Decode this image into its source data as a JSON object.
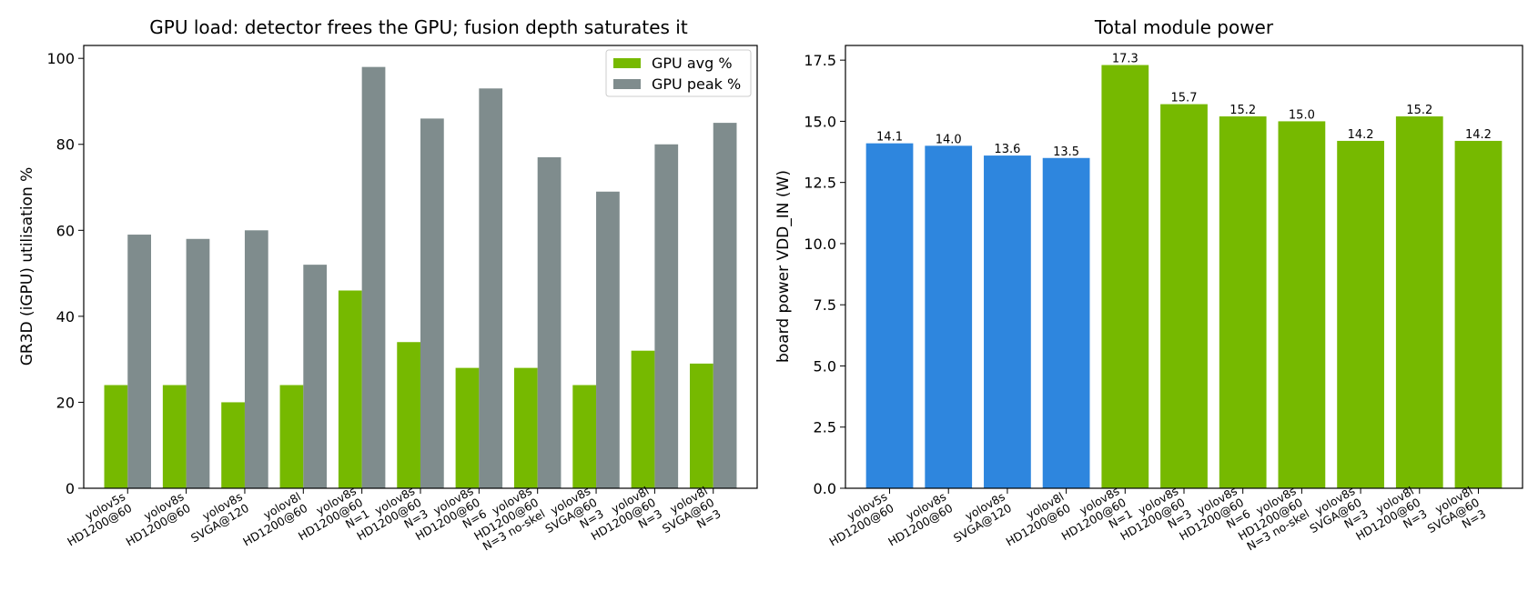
{
  "chart_data": [
    {
      "type": "bar",
      "title": "GPU load: detector frees the GPU; fusion depth saturates it",
      "xlabel": "",
      "ylabel": "GR3D (iGPU) utilisation %",
      "ylim": [
        0,
        103
      ],
      "yticks": [
        0,
        20,
        40,
        60,
        80,
        100
      ],
      "grid": false,
      "legend": "top-right",
      "categories": [
        [
          "yolov5s",
          "HD1200@60"
        ],
        [
          "yolov8s",
          "HD1200@60"
        ],
        [
          "yolov8s",
          "SVGA@120"
        ],
        [
          "yolov8l",
          "HD1200@60"
        ],
        [
          "yolov8s",
          "HD1200@60",
          "N=1"
        ],
        [
          "yolov8s",
          "HD1200@60",
          "N=3"
        ],
        [
          "yolov8s",
          "HD1200@60",
          "N=6"
        ],
        [
          "yolov8s",
          "HD1200@60",
          "N=3 no-skel"
        ],
        [
          "yolov8s",
          "SVGA@60",
          "N=3"
        ],
        [
          "yolov8l",
          "HD1200@60",
          "N=3"
        ],
        [
          "yolov8l",
          "SVGA@60",
          "N=3"
        ]
      ],
      "series": [
        {
          "name": "GPU avg %",
          "color": "#76b900",
          "values": [
            24,
            24,
            20,
            24,
            46,
            34,
            28,
            28,
            24,
            32,
            29
          ]
        },
        {
          "name": "GPU peak %",
          "color": "#7f8c8d",
          "values": [
            59,
            58,
            60,
            52,
            98,
            86,
            93,
            77,
            69,
            80,
            85
          ]
        }
      ]
    },
    {
      "type": "bar",
      "title": "Total module power",
      "xlabel": "",
      "ylabel": "board power VDD_IN (W)",
      "ylim": [
        0,
        18.1
      ],
      "yticks": [
        0.0,
        2.5,
        5.0,
        7.5,
        10.0,
        12.5,
        15.0,
        17.5
      ],
      "grid": false,
      "categories": [
        [
          "yolov5s",
          "HD1200@60"
        ],
        [
          "yolov8s",
          "HD1200@60"
        ],
        [
          "yolov8s",
          "SVGA@120"
        ],
        [
          "yolov8l",
          "HD1200@60"
        ],
        [
          "yolov8s",
          "HD1200@60",
          "N=1"
        ],
        [
          "yolov8s",
          "HD1200@60",
          "N=3"
        ],
        [
          "yolov8s",
          "HD1200@60",
          "N=6"
        ],
        [
          "yolov8s",
          "HD1200@60",
          "N=3 no-skel"
        ],
        [
          "yolov8s",
          "SVGA@60",
          "N=3"
        ],
        [
          "yolov8l",
          "HD1200@60",
          "N=3"
        ],
        [
          "yolov8l",
          "SVGA@60",
          "N=3"
        ]
      ],
      "values": [
        14.1,
        14.0,
        13.6,
        13.5,
        17.3,
        15.7,
        15.2,
        15.0,
        14.2,
        15.2,
        14.2
      ],
      "data_labels": [
        "14.1",
        "14.0",
        "13.6",
        "13.5",
        "17.3",
        "15.7",
        "15.2",
        "15.0",
        "14.2",
        "15.2",
        "14.2"
      ],
      "bar_colors": [
        "#2e86de",
        "#2e86de",
        "#2e86de",
        "#2e86de",
        "#76b900",
        "#76b900",
        "#76b900",
        "#76b900",
        "#76b900",
        "#76b900",
        "#76b900"
      ]
    }
  ]
}
